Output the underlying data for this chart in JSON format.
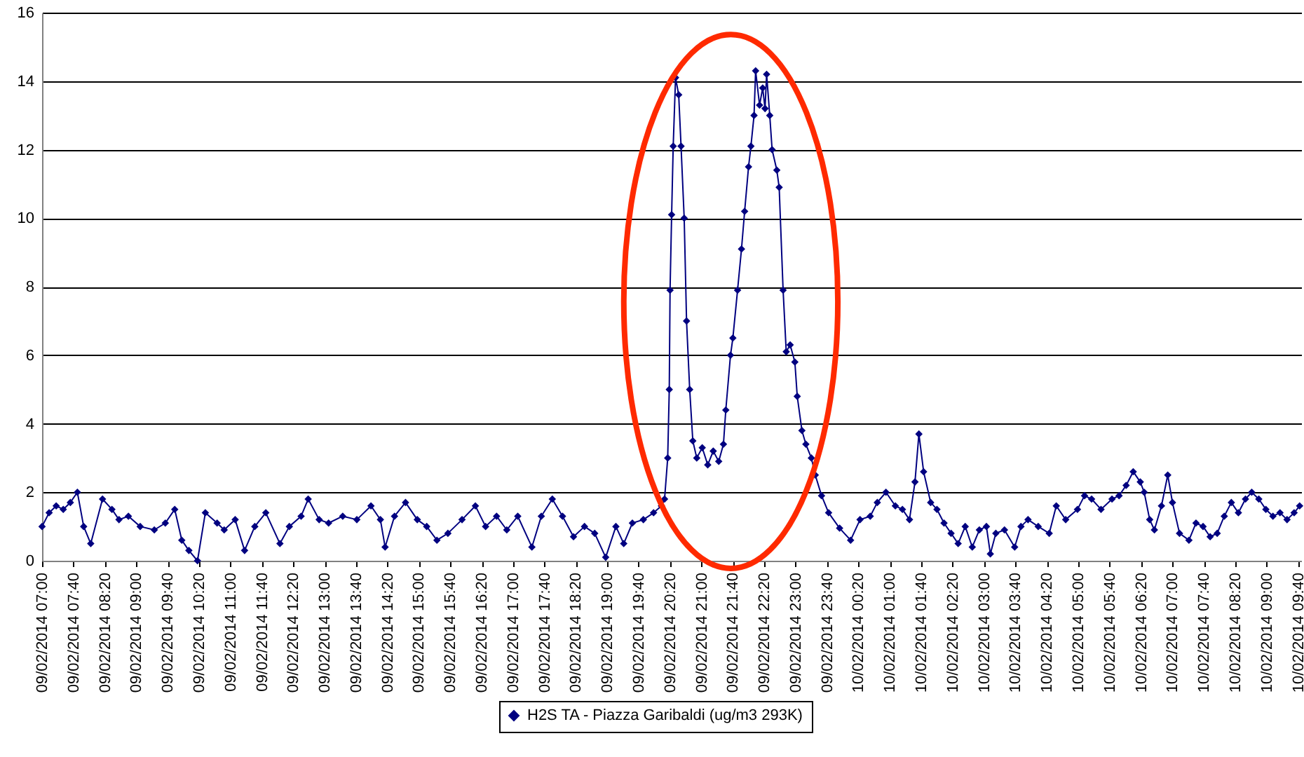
{
  "chart_data": {
    "type": "line",
    "marker": "diamond",
    "line_style": "solid",
    "grid": "y",
    "legend": "bottom",
    "x": [
      "2014-02-09T07:00",
      "2014-02-09T07:09",
      "2014-02-09T07:18",
      "2014-02-09T07:27",
      "2014-02-09T07:36",
      "2014-02-09T07:45",
      "2014-02-09T07:53",
      "2014-02-09T08:02",
      "2014-02-09T08:17",
      "2014-02-09T08:29",
      "2014-02-09T08:38",
      "2014-02-09T08:50",
      "2014-02-09T09:05",
      "2014-02-09T09:23",
      "2014-02-09T09:37",
      "2014-02-09T09:49",
      "2014-02-09T09:58",
      "2014-02-09T10:07",
      "2014-02-09T10:18",
      "2014-02-09T10:28",
      "2014-02-09T10:43",
      "2014-02-09T10:52",
      "2014-02-09T11:06",
      "2014-02-09T11:18",
      "2014-02-09T11:31",
      "2014-02-09T11:45",
      "2014-02-09T12:03",
      "2014-02-09T12:15",
      "2014-02-09T12:30",
      "2014-02-09T12:39",
      "2014-02-09T12:53",
      "2014-02-09T13:05",
      "2014-02-09T13:23",
      "2014-02-09T13:41",
      "2014-02-09T13:59",
      "2014-02-09T14:11",
      "2014-02-09T14:17",
      "2014-02-09T14:29",
      "2014-02-09T14:43",
      "2014-02-09T14:58",
      "2014-02-09T15:10",
      "2014-02-09T15:23",
      "2014-02-09T15:37",
      "2014-02-09T15:55",
      "2014-02-09T16:12",
      "2014-02-09T16:25",
      "2014-02-09T16:39",
      "2014-02-09T16:52",
      "2014-02-09T17:06",
      "2014-02-09T17:24",
      "2014-02-09T17:36",
      "2014-02-09T17:50",
      "2014-02-09T18:03",
      "2014-02-09T18:17",
      "2014-02-09T18:31",
      "2014-02-09T18:44",
      "2014-02-09T18:58",
      "2014-02-09T19:11",
      "2014-02-09T19:21",
      "2014-02-09T19:32",
      "2014-02-09T19:46",
      "2014-02-09T19:59",
      "2014-02-09T20:09",
      "2014-02-09T20:13",
      "2014-02-09T20:17",
      "2014-02-09T20:19",
      "2014-02-09T20:20",
      "2014-02-09T20:22",
      "2014-02-09T20:24",
      "2014-02-09T20:27",
      "2014-02-09T20:31",
      "2014-02-09T20:34",
      "2014-02-09T20:38",
      "2014-02-09T20:41",
      "2014-02-09T20:45",
      "2014-02-09T20:49",
      "2014-02-09T20:54",
      "2014-02-09T21:01",
      "2014-02-09T21:08",
      "2014-02-09T21:15",
      "2014-02-09T21:22",
      "2014-02-09T21:28",
      "2014-02-09T21:31",
      "2014-02-09T21:37",
      "2014-02-09T21:40",
      "2014-02-09T21:46",
      "2014-02-09T21:51",
      "2014-02-09T21:55",
      "2014-02-09T22:00",
      "2014-02-09T22:03",
      "2014-02-09T22:07",
      "2014-02-09T22:09",
      "2014-02-09T22:14",
      "2014-02-09T22:18",
      "2014-02-09T22:21",
      "2014-02-09T22:23",
      "2014-02-09T22:27",
      "2014-02-09T22:30",
      "2014-02-09T22:36",
      "2014-02-09T22:39",
      "2014-02-09T22:44",
      "2014-02-09T22:48",
      "2014-02-09T22:53",
      "2014-02-09T22:59",
      "2014-02-09T23:02",
      "2014-02-09T23:08",
      "2014-02-09T23:13",
      "2014-02-09T23:20",
      "2014-02-09T23:25",
      "2014-02-09T23:33",
      "2014-02-09T23:42",
      "2014-02-09T23:56",
      "2014-02-10T00:10",
      "2014-02-10T00:22",
      "2014-02-10T00:35",
      "2014-02-10T00:44",
      "2014-02-10T00:55",
      "2014-02-10T01:07",
      "2014-02-10T01:16",
      "2014-02-10T01:25",
      "2014-02-10T01:32",
      "2014-02-10T01:37",
      "2014-02-10T01:43",
      "2014-02-10T01:52",
      "2014-02-10T02:00",
      "2014-02-10T02:09",
      "2014-02-10T02:18",
      "2014-02-10T02:27",
      "2014-02-10T02:36",
      "2014-02-10T02:45",
      "2014-02-10T02:54",
      "2014-02-10T03:03",
      "2014-02-10T03:08",
      "2014-02-10T03:15",
      "2014-02-10T03:26",
      "2014-02-10T03:39",
      "2014-02-10T03:47",
      "2014-02-10T03:56",
      "2014-02-10T04:09",
      "2014-02-10T04:23",
      "2014-02-10T04:32",
      "2014-02-10T04:44",
      "2014-02-10T04:59",
      "2014-02-10T05:08",
      "2014-02-10T05:17",
      "2014-02-10T05:29",
      "2014-02-10T05:43",
      "2014-02-10T05:52",
      "2014-02-10T06:01",
      "2014-02-10T06:10",
      "2014-02-10T06:19",
      "2014-02-10T06:24",
      "2014-02-10T06:31",
      "2014-02-10T06:37",
      "2014-02-10T06:46",
      "2014-02-10T06:54",
      "2014-02-10T07:00",
      "2014-02-10T07:09",
      "2014-02-10T07:21",
      "2014-02-10T07:30",
      "2014-02-10T07:39",
      "2014-02-10T07:48",
      "2014-02-10T07:57",
      "2014-02-10T08:06",
      "2014-02-10T08:15",
      "2014-02-10T08:24",
      "2014-02-10T08:33",
      "2014-02-10T08:41",
      "2014-02-10T08:50",
      "2014-02-10T08:59",
      "2014-02-10T09:08",
      "2014-02-10T09:17",
      "2014-02-10T09:26",
      "2014-02-10T09:35",
      "2014-02-10T09:42"
    ],
    "series": [
      {
        "name": "H2S TA - Piazza Garibaldi (ug/m3 293K)",
        "color": "#000080",
        "values": [
          1.0,
          1.4,
          1.6,
          1.5,
          1.7,
          2.0,
          1.0,
          0.5,
          1.8,
          1.5,
          1.2,
          1.3,
          1.0,
          0.9,
          1.1,
          1.5,
          0.6,
          0.3,
          0.0,
          1.4,
          1.1,
          0.9,
          1.2,
          0.3,
          1.0,
          1.4,
          0.5,
          1.0,
          1.3,
          1.8,
          1.2,
          1.1,
          1.3,
          1.2,
          1.6,
          1.2,
          0.4,
          1.3,
          1.7,
          1.2,
          1.0,
          0.6,
          0.8,
          1.2,
          1.6,
          1.0,
          1.3,
          0.9,
          1.3,
          0.4,
          1.3,
          1.8,
          1.3,
          0.7,
          1.0,
          0.8,
          0.1,
          1.0,
          0.5,
          1.1,
          1.2,
          1.4,
          1.6,
          1.8,
          3.0,
          5.0,
          7.9,
          10.1,
          12.1,
          14.1,
          13.6,
          12.1,
          10.0,
          7.0,
          5.0,
          3.5,
          3.0,
          3.3,
          2.8,
          3.2,
          2.9,
          3.4,
          4.4,
          6.0,
          6.5,
          7.9,
          9.1,
          10.2,
          11.5,
          12.1,
          13.0,
          14.3,
          13.3,
          13.8,
          13.2,
          14.2,
          13.0,
          12.0,
          11.4,
          10.9,
          7.9,
          6.1,
          6.3,
          5.8,
          4.8,
          3.8,
          3.4,
          3.0,
          2.5,
          1.9,
          1.4,
          0.95,
          0.6,
          1.2,
          1.3,
          1.7,
          2.0,
          1.6,
          1.5,
          1.2,
          2.3,
          3.7,
          2.6,
          1.7,
          1.5,
          1.1,
          0.8,
          0.5,
          1.0,
          0.4,
          0.9,
          1.0,
          0.2,
          0.8,
          0.9,
          0.4,
          1.0,
          1.2,
          1.0,
          0.8,
          1.6,
          1.2,
          1.5,
          1.9,
          1.8,
          1.5,
          1.8,
          1.9,
          2.2,
          2.6,
          2.3,
          2.0,
          1.2,
          0.9,
          1.6,
          2.5,
          1.7,
          0.8,
          0.6,
          1.1,
          1.0,
          0.7,
          0.8,
          1.3,
          1.7,
          1.4,
          1.8,
          2.0,
          1.8,
          1.5,
          1.3,
          1.4,
          1.2,
          1.4,
          1.6
        ]
      }
    ],
    "ylim": [
      0,
      16
    ],
    "yticks": [
      0,
      2,
      4,
      6,
      8,
      10,
      12,
      14,
      16
    ],
    "xlim": [
      "2014-02-09T07:00",
      "2014-02-10T09:44"
    ],
    "xticks": [
      {
        "value": "2014-02-09T07:00",
        "label": "09/02/2014 07:00"
      },
      {
        "value": "2014-02-09T07:40",
        "label": "09/02/2014 07:40"
      },
      {
        "value": "2014-02-09T08:20",
        "label": "09/02/2014 08:20"
      },
      {
        "value": "2014-02-09T09:00",
        "label": "09/02/2014 09:00"
      },
      {
        "value": "2014-02-09T09:40",
        "label": "09/02/2014 09:40"
      },
      {
        "value": "2014-02-09T10:20",
        "label": "09/02/2014 10:20"
      },
      {
        "value": "2014-02-09T11:00",
        "label": "09/02/2014 11:00"
      },
      {
        "value": "2014-02-09T11:40",
        "label": "09/02/2014 11:40"
      },
      {
        "value": "2014-02-09T12:20",
        "label": "09/02/2014 12:20"
      },
      {
        "value": "2014-02-09T13:00",
        "label": "09/02/2014 13:00"
      },
      {
        "value": "2014-02-09T13:40",
        "label": "09/02/2014 13:40"
      },
      {
        "value": "2014-02-09T14:20",
        "label": "09/02/2014 14:20"
      },
      {
        "value": "2014-02-09T15:00",
        "label": "09/02/2014 15:00"
      },
      {
        "value": "2014-02-09T15:40",
        "label": "09/02/2014 15:40"
      },
      {
        "value": "2014-02-09T16:20",
        "label": "09/02/2014 16:20"
      },
      {
        "value": "2014-02-09T17:00",
        "label": "09/02/2014 17:00"
      },
      {
        "value": "2014-02-09T17:40",
        "label": "09/02/2014 17:40"
      },
      {
        "value": "2014-02-09T18:20",
        "label": "09/02/2014 18:20"
      },
      {
        "value": "2014-02-09T19:00",
        "label": "09/02/2014 19:00"
      },
      {
        "value": "2014-02-09T19:40",
        "label": "09/02/2014 19:40"
      },
      {
        "value": "2014-02-09T20:20",
        "label": "09/02/2014 20:20"
      },
      {
        "value": "2014-02-09T21:00",
        "label": "09/02/2014 21:00"
      },
      {
        "value": "2014-02-09T21:40",
        "label": "09/02/2014 21:40"
      },
      {
        "value": "2014-02-09T22:20",
        "label": "09/02/2014 22:20"
      },
      {
        "value": "2014-02-09T23:00",
        "label": "09/02/2014 23:00"
      },
      {
        "value": "2014-02-09T23:40",
        "label": "09/02/2014 23:40"
      },
      {
        "value": "2014-02-10T00:20",
        "label": "10/02/2014 00:20"
      },
      {
        "value": "2014-02-10T01:00",
        "label": "10/02/2014 01:00"
      },
      {
        "value": "2014-02-10T01:40",
        "label": "10/02/2014 01:40"
      },
      {
        "value": "2014-02-10T02:20",
        "label": "10/02/2014 02:20"
      },
      {
        "value": "2014-02-10T03:00",
        "label": "10/02/2014 03:00"
      },
      {
        "value": "2014-02-10T03:40",
        "label": "10/02/2014 03:40"
      },
      {
        "value": "2014-02-10T04:20",
        "label": "10/02/2014 04:20"
      },
      {
        "value": "2014-02-10T05:00",
        "label": "10/02/2014 05:00"
      },
      {
        "value": "2014-02-10T05:40",
        "label": "10/02/2014 05:40"
      },
      {
        "value": "2014-02-10T06:20",
        "label": "10/02/2014 06:20"
      },
      {
        "value": "2014-02-10T07:00",
        "label": "10/02/2014 07:00"
      },
      {
        "value": "2014-02-10T07:40",
        "label": "10/02/2014 07:40"
      },
      {
        "value": "2014-02-10T08:20",
        "label": "10/02/2014 08:20"
      },
      {
        "value": "2014-02-10T09:00",
        "label": "10/02/2014 09:00"
      },
      {
        "value": "2014-02-10T09:40",
        "label": "10/02/2014 09:40"
      }
    ]
  }
}
